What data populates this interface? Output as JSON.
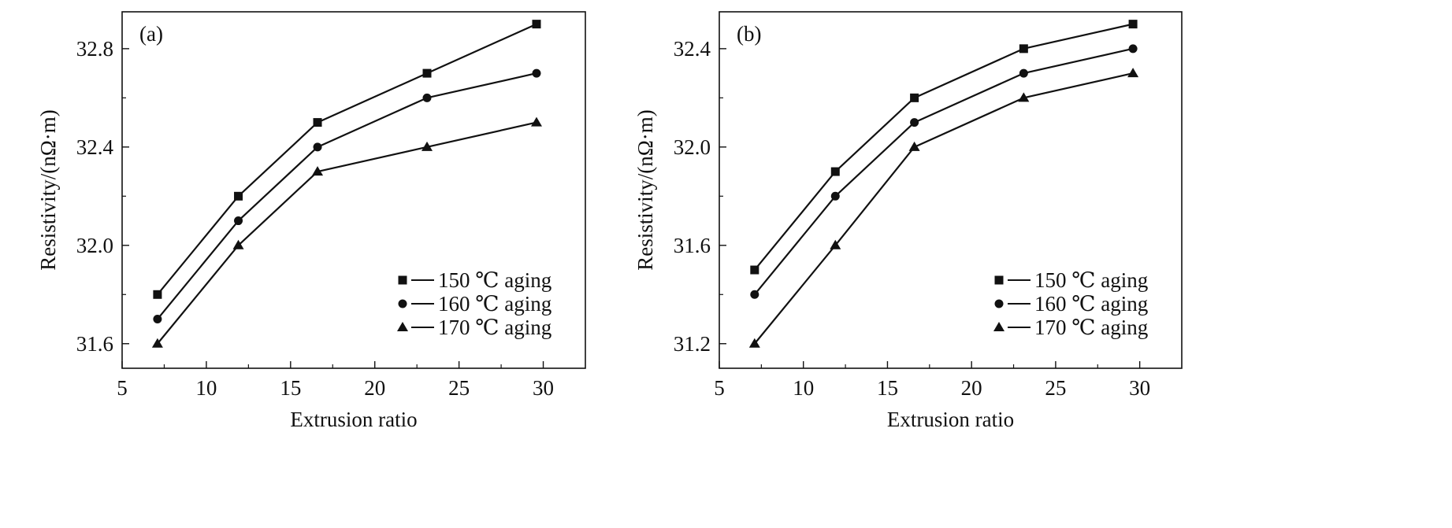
{
  "figure": {
    "background": "#ffffff",
    "ink": "#111111"
  },
  "chart_data": [
    {
      "type": "line",
      "panel_label": "(a)",
      "xlabel": "Extrusion ratio",
      "ylabel": "Resistivity/(nΩ·m)",
      "xlim": [
        5,
        32.5
      ],
      "ylim": [
        31.5,
        32.95
      ],
      "xticks": [
        5,
        10,
        15,
        20,
        25,
        30
      ],
      "xtick_labels": [
        "5",
        "10",
        "15",
        "20",
        "25",
        "30"
      ],
      "yticks": [
        31.6,
        32.0,
        32.4,
        32.8
      ],
      "ytick_labels": [
        "31.6",
        "32.0",
        "32.4",
        "32.8"
      ],
      "grid": false,
      "legend_position": "bottom-right",
      "x": [
        7.1,
        11.9,
        16.6,
        23.1,
        29.6
      ],
      "series": [
        {
          "name": "150 ℃ aging",
          "marker": "square",
          "values": [
            31.8,
            32.2,
            32.5,
            32.7,
            32.9
          ]
        },
        {
          "name": "160 ℃ aging",
          "marker": "circle",
          "values": [
            31.7,
            32.1,
            32.4,
            32.6,
            32.7
          ]
        },
        {
          "name": "170 ℃ aging",
          "marker": "triangle",
          "values": [
            31.6,
            32.0,
            32.3,
            32.4,
            32.5
          ]
        }
      ]
    },
    {
      "type": "line",
      "panel_label": "(b)",
      "xlabel": "Extrusion ratio",
      "ylabel": "Resistivity/(nΩ·m)",
      "xlim": [
        5,
        32.5
      ],
      "ylim": [
        31.1,
        32.55
      ],
      "xticks": [
        5,
        10,
        15,
        20,
        25,
        30
      ],
      "xtick_labels": [
        "5",
        "10",
        "15",
        "20",
        "25",
        "30"
      ],
      "yticks": [
        31.2,
        31.6,
        32.0,
        32.4
      ],
      "ytick_labels": [
        "31.2",
        "31.6",
        "32.0",
        "32.4"
      ],
      "grid": false,
      "legend_position": "bottom-right",
      "x": [
        7.1,
        11.9,
        16.6,
        23.1,
        29.6
      ],
      "series": [
        {
          "name": "150 ℃ aging",
          "marker": "square",
          "values": [
            31.5,
            31.9,
            32.2,
            32.4,
            32.5
          ]
        },
        {
          "name": "160 ℃ aging",
          "marker": "circle",
          "values": [
            31.4,
            31.8,
            32.1,
            32.3,
            32.4
          ]
        },
        {
          "name": "170 ℃ aging",
          "marker": "triangle",
          "values": [
            31.2,
            31.6,
            32.0,
            32.2,
            32.3
          ]
        }
      ]
    }
  ]
}
